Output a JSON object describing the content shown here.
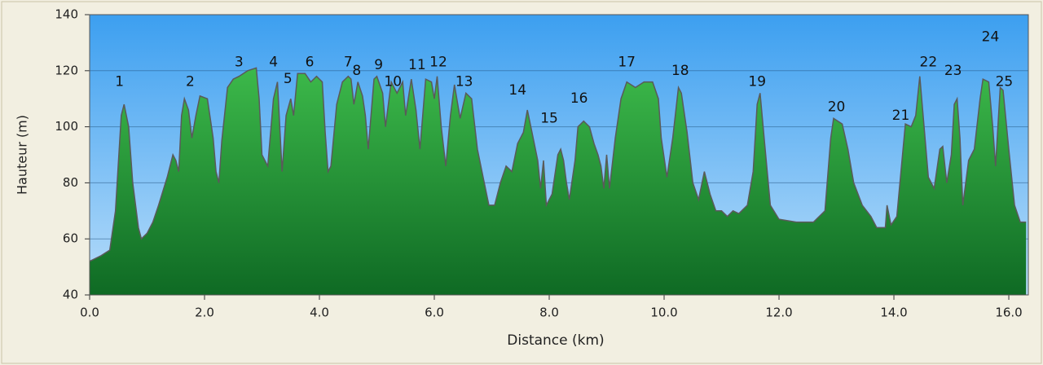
{
  "chart_data": {
    "type": "area",
    "x_label": "Distance   (km)",
    "y_label": "Hauteur (m)",
    "xlim": [
      0,
      16.34
    ],
    "ylim": [
      40,
      140
    ],
    "xticks": [
      {
        "value": 0,
        "label": "0.0"
      },
      {
        "value": 2,
        "label": "2.0"
      },
      {
        "value": 4,
        "label": "4.0"
      },
      {
        "value": 6,
        "label": "6.0"
      },
      {
        "value": 8,
        "label": "8.0"
      },
      {
        "value": 10,
        "label": "10.0"
      },
      {
        "value": 12,
        "label": "12.0"
      },
      {
        "value": 14,
        "label": "14.0"
      },
      {
        "value": 16,
        "label": "16.0"
      }
    ],
    "yticks": [
      40,
      60,
      80,
      100,
      120,
      140
    ],
    "grid": true,
    "color": "#2a9a36",
    "line_color": "#5a5a5a",
    "x": [
      0,
      0.2,
      0.35,
      0.45,
      0.55,
      0.6,
      0.68,
      0.75,
      0.85,
      0.9,
      1.0,
      1.1,
      1.2,
      1.35,
      1.45,
      1.5,
      1.55,
      1.6,
      1.65,
      1.72,
      1.78,
      1.85,
      1.92,
      2.05,
      2.15,
      2.2,
      2.25,
      2.3,
      2.4,
      2.5,
      2.6,
      2.75,
      2.9,
      2.95,
      3.0,
      3.1,
      3.2,
      3.27,
      3.35,
      3.42,
      3.5,
      3.55,
      3.62,
      3.75,
      3.85,
      3.95,
      4.05,
      4.1,
      4.15,
      4.2,
      4.3,
      4.4,
      4.5,
      4.55,
      4.6,
      4.67,
      4.75,
      4.8,
      4.85,
      4.95,
      5.0,
      5.1,
      5.15,
      5.25,
      5.35,
      5.45,
      5.5,
      5.6,
      5.68,
      5.75,
      5.85,
      5.95,
      6.0,
      6.05,
      6.12,
      6.2,
      6.28,
      6.35,
      6.45,
      6.55,
      6.65,
      6.75,
      6.85,
      6.95,
      7.05,
      7.15,
      7.25,
      7.35,
      7.45,
      7.55,
      7.62,
      7.7,
      7.8,
      7.85,
      7.9,
      7.95,
      8.05,
      8.15,
      8.2,
      8.25,
      8.3,
      8.35,
      8.45,
      8.5,
      8.6,
      8.7,
      8.78,
      8.85,
      8.9,
      8.95,
      9.0,
      9.05,
      9.15,
      9.25,
      9.35,
      9.5,
      9.65,
      9.8,
      9.9,
      9.95,
      10.05,
      10.15,
      10.25,
      10.3,
      10.4,
      10.5,
      10.6,
      10.7,
      10.8,
      10.9,
      11.0,
      11.1,
      11.2,
      11.3,
      11.45,
      11.55,
      11.62,
      11.67,
      11.75,
      11.85,
      12.0,
      12.3,
      12.6,
      12.8,
      12.9,
      12.95,
      13.1,
      13.2,
      13.3,
      13.45,
      13.6,
      13.7,
      13.85,
      13.88,
      13.95,
      14.05,
      14.15,
      14.2,
      14.3,
      14.38,
      14.45,
      14.5,
      14.6,
      14.7,
      14.8,
      14.85,
      14.92,
      15.0,
      15.05,
      15.1,
      15.15,
      15.2,
      15.3,
      15.4,
      15.5,
      15.55,
      15.65,
      15.72,
      15.77,
      15.85,
      15.9,
      16.0,
      16.1,
      16.2,
      16.3
    ],
    "values": [
      52,
      54,
      56,
      70,
      104,
      108,
      100,
      80,
      64,
      60,
      62,
      66,
      72,
      82,
      90,
      88,
      84,
      104,
      110,
      106,
      96,
      104,
      111,
      110,
      96,
      84,
      80,
      95,
      114,
      117,
      118,
      120,
      121,
      110,
      90,
      86,
      110,
      116,
      84,
      104,
      110,
      104,
      119,
      119,
      116,
      118,
      116,
      98,
      84,
      86,
      108,
      116,
      118,
      117,
      108,
      116,
      111,
      104,
      92,
      117,
      118,
      112,
      100,
      116,
      112,
      116,
      104,
      117,
      106,
      92,
      117,
      116,
      110,
      118,
      100,
      86,
      104,
      115,
      103,
      112,
      110,
      92,
      82,
      72,
      72,
      80,
      86,
      84,
      94,
      98,
      106,
      98,
      88,
      78,
      88,
      72,
      76,
      90,
      92,
      88,
      80,
      74,
      88,
      100,
      102,
      100,
      94,
      90,
      86,
      78,
      90,
      78,
      96,
      110,
      116,
      114,
      116,
      116,
      110,
      96,
      82,
      96,
      114,
      112,
      98,
      80,
      74,
      84,
      76,
      70,
      70,
      68,
      70,
      69,
      72,
      84,
      108,
      112,
      94,
      72,
      67,
      66,
      66,
      70,
      96,
      103,
      101,
      92,
      80,
      72,
      68,
      64,
      64,
      72,
      65,
      68,
      90,
      101,
      100,
      104,
      118,
      106,
      82,
      78,
      92,
      93,
      80,
      90,
      108,
      110,
      96,
      72,
      88,
      92,
      110,
      117,
      116,
      100,
      86,
      114,
      113,
      92,
      72,
      66,
      66
    ],
    "annotations": [
      {
        "text": "1",
        "x": 0.52,
        "y": 116
      },
      {
        "text": "2",
        "x": 1.75,
        "y": 116
      },
      {
        "text": "3",
        "x": 2.6,
        "y": 123
      },
      {
        "text": "4",
        "x": 3.2,
        "y": 123
      },
      {
        "text": "5",
        "x": 3.45,
        "y": 117
      },
      {
        "text": "6",
        "x": 3.83,
        "y": 123
      },
      {
        "text": "7",
        "x": 4.5,
        "y": 123
      },
      {
        "text": "8",
        "x": 4.65,
        "y": 120
      },
      {
        "text": "9",
        "x": 5.03,
        "y": 122
      },
      {
        "text": "10",
        "x": 5.28,
        "y": 116
      },
      {
        "text": "11",
        "x": 5.7,
        "y": 122
      },
      {
        "text": "12",
        "x": 6.07,
        "y": 123
      },
      {
        "text": "13",
        "x": 6.52,
        "y": 116
      },
      {
        "text": "14",
        "x": 7.45,
        "y": 113
      },
      {
        "text": "15",
        "x": 8.0,
        "y": 103
      },
      {
        "text": "16",
        "x": 8.52,
        "y": 110
      },
      {
        "text": "17",
        "x": 9.35,
        "y": 123
      },
      {
        "text": "18",
        "x": 10.28,
        "y": 120
      },
      {
        "text": "19",
        "x": 11.62,
        "y": 116
      },
      {
        "text": "20",
        "x": 13.0,
        "y": 107
      },
      {
        "text": "21",
        "x": 14.12,
        "y": 104
      },
      {
        "text": "22",
        "x": 14.6,
        "y": 123
      },
      {
        "text": "23",
        "x": 15.03,
        "y": 120
      },
      {
        "text": "24",
        "x": 15.68,
        "y": 132
      },
      {
        "text": "25",
        "x": 15.92,
        "y": 116
      }
    ]
  }
}
